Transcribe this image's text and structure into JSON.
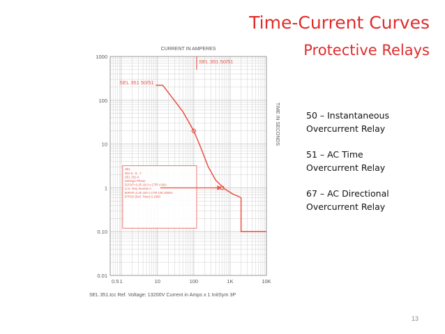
{
  "slide": {
    "title": "Time-Current Curves",
    "subtitle": "Protective Relays",
    "page_number": "13"
  },
  "definitions": [
    {
      "line1": "50 – Instantaneous",
      "line2": "Overcurrent Relay"
    },
    {
      "line1": "51 – AC Time",
      "line2": "Overcurrent Relay"
    },
    {
      "line1": "67 – AC Directional",
      "line2": "Overcurrent Relay"
    }
  ],
  "colors": {
    "title": "#e02b2b",
    "curve": "#e8584b",
    "grid": "#c9c9c9",
    "axis_text": "#555555"
  },
  "chart_data": {
    "type": "line",
    "scale": {
      "x": "log",
      "y": "log"
    },
    "xlim": [
      0.5,
      10000
    ],
    "ylim": [
      0.01,
      1000
    ],
    "x_top_label": "CURRENT IN AMPERES",
    "y_right_label": "TIME IN SECONDS",
    "x_ticks": [
      {
        "value": 0.5,
        "label": "0.5"
      },
      {
        "value": 1,
        "label": "1"
      },
      {
        "value": 10,
        "label": "10"
      },
      {
        "value": 100,
        "label": "100"
      },
      {
        "value": 1000,
        "label": "1K"
      },
      {
        "value": 10000,
        "label": "10K"
      }
    ],
    "y_ticks": [
      {
        "value": 1000,
        "label": "1000"
      },
      {
        "value": 100,
        "label": "100"
      },
      {
        "value": 10,
        "label": "10"
      },
      {
        "value": 1,
        "label": "1"
      },
      {
        "value": 0.1,
        "label": "0.10"
      },
      {
        "value": 0.01,
        "label": "0.01"
      }
    ],
    "grid": true,
    "series": [
      {
        "name": "SEL 351 50/51",
        "points": [
          [
            9,
            220
          ],
          [
            14,
            220
          ],
          [
            50,
            55
          ],
          [
            100,
            20
          ],
          [
            150,
            9
          ],
          [
            250,
            3
          ],
          [
            400,
            1.5
          ],
          [
            700,
            0.95
          ],
          [
            1200,
            0.72
          ],
          [
            2000,
            0.6
          ]
        ]
      }
    ],
    "instantaneous_step": {
      "x": 2000,
      "y_top": 0.6,
      "y_bottom": 0.1,
      "x_end": 10000
    },
    "vertical_marker": {
      "x": 120,
      "label": "SEL 351 50/51"
    },
    "curve_label": "SEL 351 50/51",
    "markers": [
      [
        100,
        20
      ],
      [
        600,
        1
      ]
    ],
    "arrow": {
      "from": [
        12,
        1
      ],
      "to": [
        600,
        1
      ]
    },
    "settings_box": {
      "lines": [
        "SEL",
        "351-5, -6, -7",
        "SEL 351-6",
        "Settings Phase",
        "51P1P=0.25 18.0 x CTR 4.80A",
        "U.S. Very Inverse A",
        "50P1P=2.25 100 x CTR 100 2000A",
        "67P1D (Def. Time) 0.1500"
      ]
    },
    "footer": "SEL 351.tcc   Ref. Voltage: 13200V   Current in Amps x 1   InitSym 3P"
  }
}
